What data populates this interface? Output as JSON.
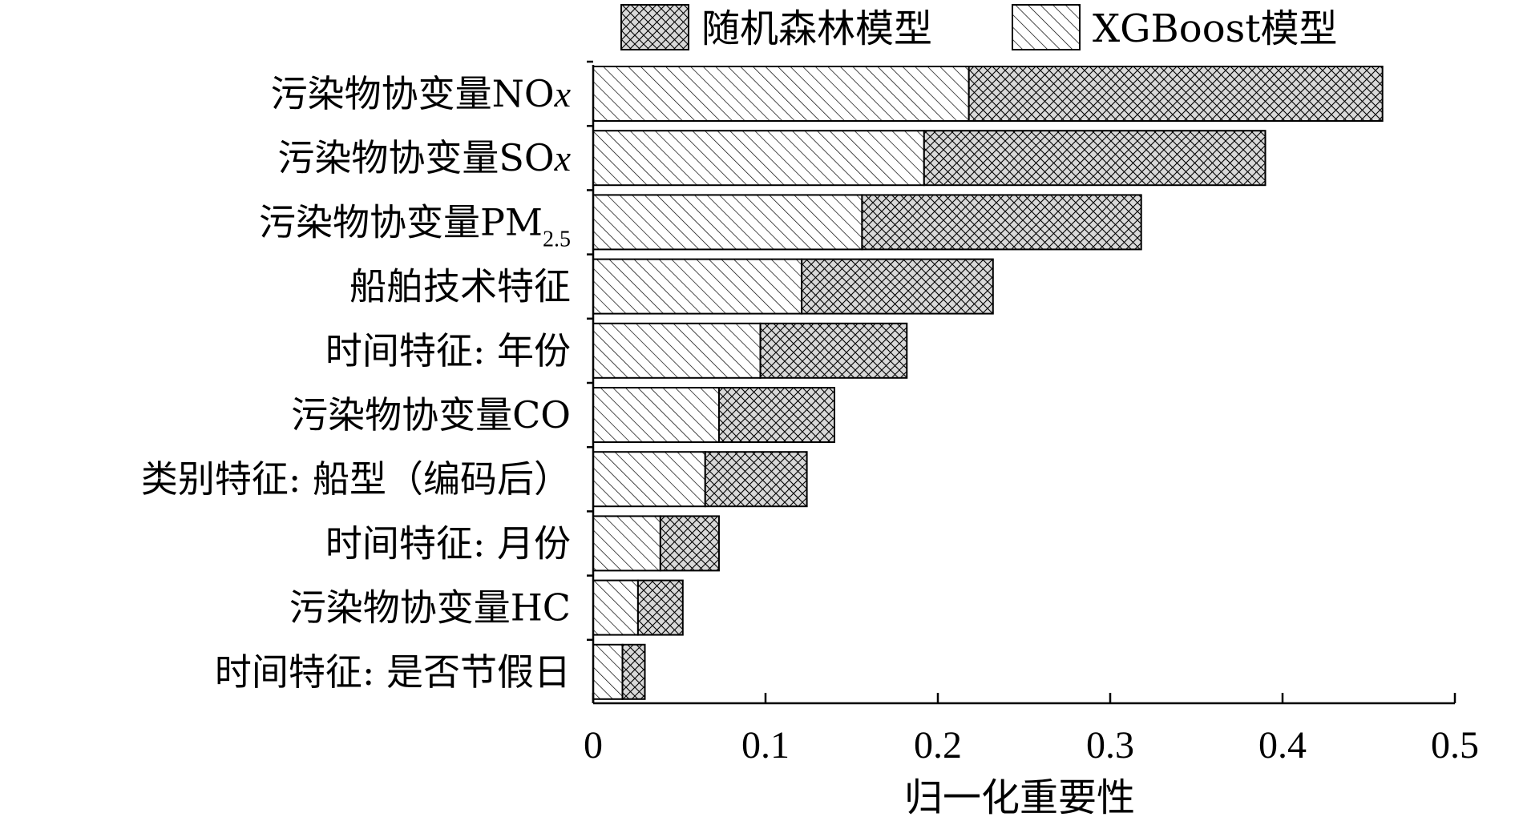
{
  "chart_data": {
    "type": "bar",
    "orientation": "horizontal",
    "stacked": true,
    "categories": [
      {
        "main": "污染物协变量NO",
        "italic": "x",
        "sub": ""
      },
      {
        "main": "污染物协变量SO",
        "italic": "x",
        "sub": ""
      },
      {
        "main": "污染物协变量PM",
        "italic": "",
        "sub": "2.5"
      },
      {
        "main": "船舶技术特征",
        "italic": "",
        "sub": ""
      },
      {
        "main": "时间特征: 年份",
        "italic": "",
        "sub": ""
      },
      {
        "main": "污染物协变量CO",
        "italic": "",
        "sub": ""
      },
      {
        "main": "类别特征: 船型（编码后）",
        "italic": "",
        "sub": ""
      },
      {
        "main": "时间特征: 月份",
        "italic": "",
        "sub": ""
      },
      {
        "main": "污染物协变量HC",
        "italic": "",
        "sub": ""
      },
      {
        "main": "时间特征: 是否节假日",
        "italic": "",
        "sub": ""
      }
    ],
    "series": [
      {
        "name": "XGBoost模型",
        "pattern": "diagonal-hatch",
        "values": [
          0.218,
          0.192,
          0.156,
          0.121,
          0.097,
          0.073,
          0.065,
          0.039,
          0.026,
          0.017
        ]
      },
      {
        "name": "随机森林模型",
        "pattern": "cross-hatch",
        "values": [
          0.24,
          0.198,
          0.162,
          0.111,
          0.085,
          0.067,
          0.059,
          0.034,
          0.026,
          0.013
        ]
      }
    ],
    "legend_order": [
      1,
      0
    ],
    "legend_position": "top",
    "xlabel": "归一化重要性",
    "ylabel": "",
    "xlim": [
      0,
      0.5
    ],
    "xticks": [
      "0",
      "0.1",
      "0.2",
      "0.3",
      "0.4",
      "0.5"
    ],
    "grid": false,
    "colors": {
      "fill_light": "#ffffff",
      "fill_cross": "#d9d9d9",
      "stroke": "#000000"
    }
  }
}
